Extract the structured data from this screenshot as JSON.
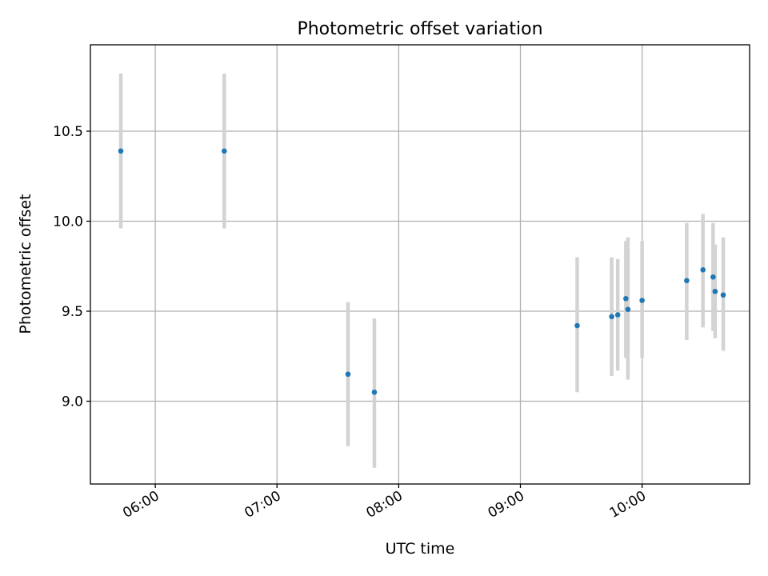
{
  "chart_data": {
    "type": "scatter",
    "title": "Photometric offset variation",
    "xlabel": "UTC time",
    "ylabel": "Photometric offset",
    "xlim": [
      "05:28",
      "10:53"
    ],
    "ylim": [
      8.54,
      10.98
    ],
    "x_ticks": [
      "06:00",
      "07:00",
      "08:00",
      "09:00",
      "10:00"
    ],
    "y_ticks": [
      9.0,
      9.5,
      10.0,
      10.5
    ],
    "grid": true,
    "legend": "none",
    "marker_color": "#1f77b4",
    "errorbar_color": "#d3d3d3",
    "series": [
      {
        "points": [
          {
            "x": "05:43",
            "y": 10.39,
            "y_low": 9.96,
            "y_high": 10.82
          },
          {
            "x": "06:34",
            "y": 10.39,
            "y_low": 9.96,
            "y_high": 10.82
          },
          {
            "x": "07:35",
            "y": 9.15,
            "y_low": 8.75,
            "y_high": 9.55
          },
          {
            "x": "07:48",
            "y": 9.05,
            "y_low": 8.63,
            "y_high": 9.46
          },
          {
            "x": "09:28",
            "y": 9.42,
            "y_low": 9.05,
            "y_high": 9.8
          },
          {
            "x": "09:45",
            "y": 9.47,
            "y_low": 9.14,
            "y_high": 9.8
          },
          {
            "x": "09:48",
            "y": 9.48,
            "y_low": 9.17,
            "y_high": 9.79
          },
          {
            "x": "09:52",
            "y": 9.57,
            "y_low": 9.24,
            "y_high": 9.89
          },
          {
            "x": "09:53",
            "y": 9.51,
            "y_low": 9.12,
            "y_high": 9.91
          },
          {
            "x": "10:00",
            "y": 9.56,
            "y_low": 9.24,
            "y_high": 9.89
          },
          {
            "x": "10:22",
            "y": 9.67,
            "y_low": 9.34,
            "y_high": 9.99
          },
          {
            "x": "10:30",
            "y": 9.73,
            "y_low": 9.41,
            "y_high": 10.04
          },
          {
            "x": "10:35",
            "y": 9.69,
            "y_low": 9.39,
            "y_high": 9.99
          },
          {
            "x": "10:36",
            "y": 9.61,
            "y_low": 9.35,
            "y_high": 9.87
          },
          {
            "x": "10:40",
            "y": 9.59,
            "y_low": 9.28,
            "y_high": 9.91
          }
        ]
      }
    ]
  }
}
